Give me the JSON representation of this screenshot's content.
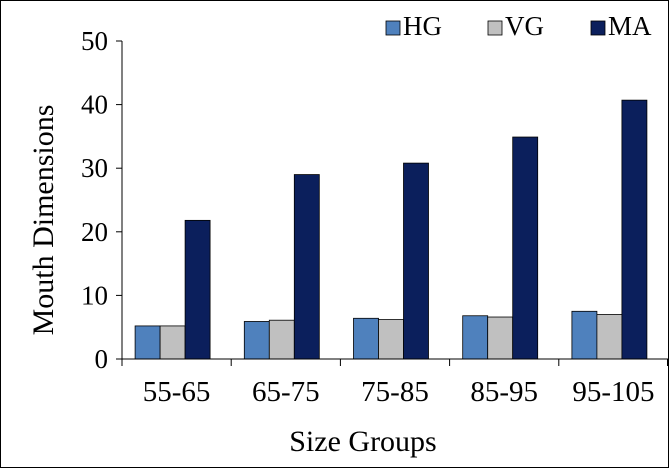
{
  "chart_data": {
    "type": "bar",
    "categories": [
      "55-65",
      "65-75",
      "75-85",
      "85-95",
      "95-105"
    ],
    "series": [
      {
        "name": "HG",
        "values": [
          5.2,
          5.9,
          6.4,
          6.8,
          7.5
        ],
        "color": "#4f81bd"
      },
      {
        "name": "VG",
        "values": [
          5.2,
          6.1,
          6.2,
          6.6,
          7.0
        ],
        "color": "#c0c0c0"
      },
      {
        "name": "MA",
        "values": [
          21.8,
          29.0,
          30.8,
          34.9,
          40.7
        ],
        "color": "#0b1f5c"
      }
    ],
    "xlabel": "Size Groups",
    "ylabel": "Mouth Dimensions",
    "ylim": [
      0,
      50
    ],
    "yticks": [
      0,
      10,
      20,
      30,
      40,
      50
    ],
    "grid": false,
    "legend": "top-right"
  }
}
